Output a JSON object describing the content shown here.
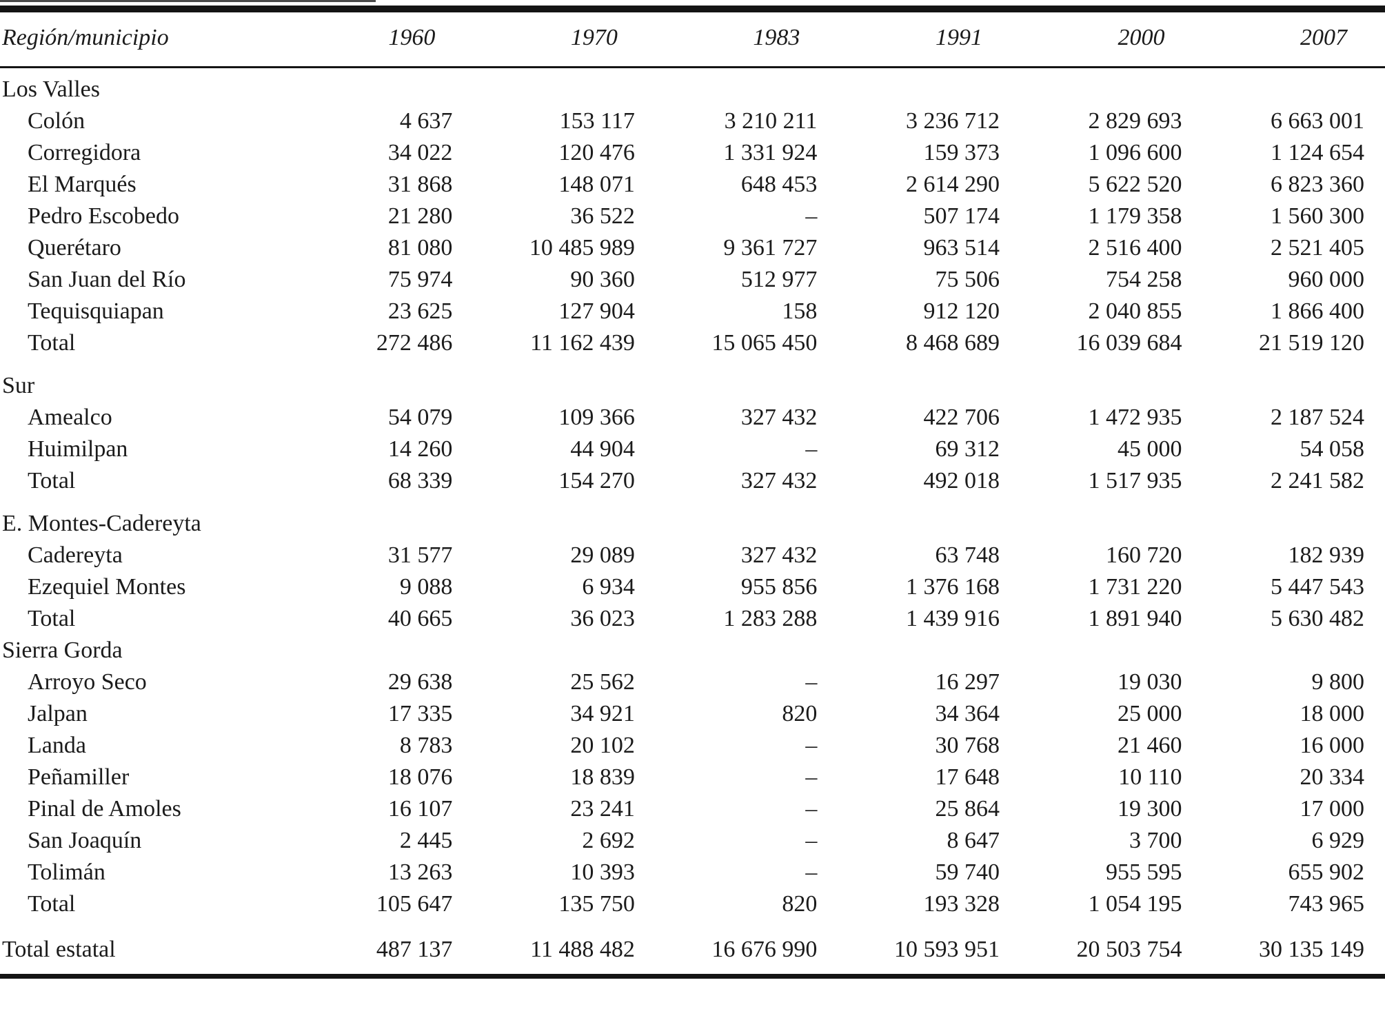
{
  "colors": {
    "background": "#ffffff",
    "text": "#1b1b1b",
    "rule": "#141414"
  },
  "table": {
    "columns": [
      "Región/municipio",
      "1960",
      "1970",
      "1983",
      "1991",
      "2000",
      "2007"
    ],
    "missing_marker": "–",
    "rows": [
      {
        "type": "section",
        "spaced": false,
        "label": "Los Valles",
        "values": [
          "",
          "",
          "",
          "",
          "",
          ""
        ]
      },
      {
        "type": "data",
        "spaced": false,
        "label": "Colón",
        "values": [
          "4 637",
          "153 117",
          "3 210 211",
          "3 236 712",
          "2 829 693",
          "6 663 001"
        ]
      },
      {
        "type": "data",
        "spaced": false,
        "label": "Corregidora",
        "values": [
          "34 022",
          "120 476",
          "1 331 924",
          "159 373",
          "1 096 600",
          "1 124 654"
        ]
      },
      {
        "type": "data",
        "spaced": false,
        "label": "El Marqués",
        "values": [
          "31 868",
          "148 071",
          "648 453",
          "2 614 290",
          "5 622 520",
          "6 823 360"
        ]
      },
      {
        "type": "data",
        "spaced": false,
        "label": "Pedro Escobedo",
        "values": [
          "21 280",
          "36 522",
          "–",
          "507 174",
          "1 179 358",
          "1 560 300"
        ]
      },
      {
        "type": "data",
        "spaced": false,
        "label": "Querétaro",
        "values": [
          "81 080",
          "10 485 989",
          "9 361 727",
          "963 514",
          "2 516 400",
          "2 521 405"
        ]
      },
      {
        "type": "data",
        "spaced": false,
        "label": "San Juan del Río",
        "values": [
          "75 974",
          "90 360",
          "512 977",
          "75 506",
          "754 258",
          "960 000"
        ]
      },
      {
        "type": "data",
        "spaced": false,
        "label": "Tequisquiapan",
        "values": [
          "23 625",
          "127 904",
          "158",
          "912 120",
          "2 040 855",
          "1 866 400"
        ]
      },
      {
        "type": "total",
        "spaced": false,
        "label": "Total",
        "values": [
          "272 486",
          "11 162 439",
          "15 065 450",
          "8 468 689",
          "16 039 684",
          "21 519 120"
        ]
      },
      {
        "type": "section",
        "spaced": true,
        "label": "Sur",
        "values": [
          "",
          "",
          "",
          "",
          "",
          ""
        ]
      },
      {
        "type": "data",
        "spaced": false,
        "label": "Amealco",
        "values": [
          "54 079",
          "109 366",
          "327 432",
          "422 706",
          "1 472 935",
          "2 187 524"
        ]
      },
      {
        "type": "data",
        "spaced": false,
        "label": "Huimilpan",
        "values": [
          "14 260",
          "44 904",
          "–",
          "69 312",
          "45 000",
          "54 058"
        ]
      },
      {
        "type": "total",
        "spaced": false,
        "label": "Total",
        "values": [
          "68 339",
          "154 270",
          "327 432",
          "492 018",
          "1 517 935",
          "2 241 582"
        ]
      },
      {
        "type": "section",
        "spaced": true,
        "label": "E. Montes-Cadereyta",
        "values": [
          "",
          "",
          "",
          "",
          "",
          ""
        ]
      },
      {
        "type": "data",
        "spaced": false,
        "label": "Cadereyta",
        "values": [
          "31 577",
          "29 089",
          "327 432",
          "63 748",
          "160 720",
          "182 939"
        ]
      },
      {
        "type": "data",
        "spaced": false,
        "label": "Ezequiel Montes",
        "values": [
          "9 088",
          "6 934",
          "955 856",
          "1 376 168",
          "1 731 220",
          "5 447 543"
        ]
      },
      {
        "type": "total",
        "spaced": false,
        "label": "Total",
        "values": [
          "40 665",
          "36 023",
          "1 283 288",
          "1 439 916",
          "1 891 940",
          "5 630 482"
        ]
      },
      {
        "type": "section",
        "spaced": false,
        "label": "Sierra Gorda",
        "values": [
          "",
          "",
          "",
          "",
          "",
          ""
        ]
      },
      {
        "type": "data",
        "spaced": false,
        "label": "Arroyo Seco",
        "values": [
          "29 638",
          "25 562",
          "–",
          "16 297",
          "19 030",
          "9 800"
        ]
      },
      {
        "type": "data",
        "spaced": false,
        "label": "Jalpan",
        "values": [
          "17 335",
          "34 921",
          "820",
          "34 364",
          "25 000",
          "18 000"
        ]
      },
      {
        "type": "data",
        "spaced": false,
        "label": "Landa",
        "values": [
          "8 783",
          "20 102",
          "–",
          "30 768",
          "21 460",
          "16 000"
        ]
      },
      {
        "type": "data",
        "spaced": false,
        "label": "Peñamiller",
        "values": [
          "18 076",
          "18 839",
          "–",
          "17 648",
          "10 110",
          "20 334"
        ]
      },
      {
        "type": "data",
        "spaced": false,
        "label": "Pinal de Amoles",
        "values": [
          "16 107",
          "23 241",
          "–",
          "25 864",
          "19 300",
          "17 000"
        ]
      },
      {
        "type": "data",
        "spaced": false,
        "label": "San Joaquín",
        "values": [
          "2 445",
          "2 692",
          "–",
          "8 647",
          "3 700",
          "6 929"
        ]
      },
      {
        "type": "data",
        "spaced": false,
        "label": "Tolimán",
        "values": [
          "13 263",
          "10 393",
          "–",
          "59 740",
          "955 595",
          "655 902"
        ]
      },
      {
        "type": "total",
        "spaced": false,
        "label": "Total",
        "values": [
          "105 647",
          "135 750",
          "820",
          "193 328",
          "1 054 195",
          "743 965"
        ]
      },
      {
        "type": "grand",
        "spaced": true,
        "label": "Total estatal",
        "values": [
          "487 137",
          "11 488 482",
          "16 676 990",
          "10 593 951",
          "20 503 754",
          "30 135 149"
        ]
      }
    ]
  }
}
